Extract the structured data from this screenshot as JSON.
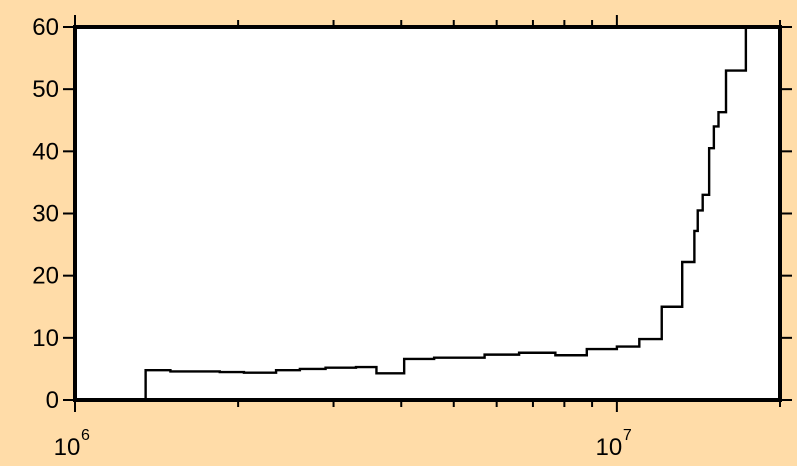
{
  "chart_data": {
    "type": "line",
    "step": true,
    "title": "",
    "xlabel": "",
    "ylabel": "",
    "x_scale": "log",
    "xlim": [
      1000000,
      20000000
    ],
    "ylim": [
      0,
      60
    ],
    "grid": false,
    "colors": {
      "background": "#ffdca8",
      "plot_area": "#ffffff",
      "line": "#000000"
    },
    "y_ticks": [
      {
        "value": 0,
        "label": "0"
      },
      {
        "value": 10,
        "label": "10"
      },
      {
        "value": 20,
        "label": "20"
      },
      {
        "value": 30,
        "label": "30"
      },
      {
        "value": 40,
        "label": "40"
      },
      {
        "value": 50,
        "label": "50"
      },
      {
        "value": 60,
        "label": "60"
      }
    ],
    "x_major_ticks": [
      {
        "value": 1000000,
        "base": "10",
        "exponent": "6"
      },
      {
        "value": 10000000,
        "base": "10",
        "exponent": "7"
      }
    ],
    "x_minor_ticks": [
      2000000,
      3000000,
      4000000,
      5000000,
      6000000,
      7000000,
      8000000,
      9000000,
      20000000
    ],
    "series": [
      {
        "points": [
          [
            1350000,
            0
          ],
          [
            1350000,
            4.8
          ],
          [
            1500000,
            4.6
          ],
          [
            1850000,
            4.5
          ],
          [
            2050000,
            4.4
          ],
          [
            2350000,
            4.8
          ],
          [
            2600000,
            5.0
          ],
          [
            2900000,
            5.2
          ],
          [
            3300000,
            5.3
          ],
          [
            3600000,
            4.3
          ],
          [
            4050000,
            6.6
          ],
          [
            4600000,
            6.8
          ],
          [
            5700000,
            7.3
          ],
          [
            6600000,
            7.6
          ],
          [
            7700000,
            7.2
          ],
          [
            8800000,
            8.2
          ],
          [
            10000000,
            8.6
          ],
          [
            11000000,
            9.8
          ],
          [
            12100000,
            15.0
          ],
          [
            13200000,
            22.2
          ],
          [
            13900000,
            27.2
          ],
          [
            14100000,
            30.5
          ],
          [
            14400000,
            33.0
          ],
          [
            14800000,
            40.5
          ],
          [
            15100000,
            44.0
          ],
          [
            15400000,
            46.3
          ],
          [
            15900000,
            53.0
          ],
          [
            17300000,
            60.0
          ]
        ]
      }
    ]
  }
}
